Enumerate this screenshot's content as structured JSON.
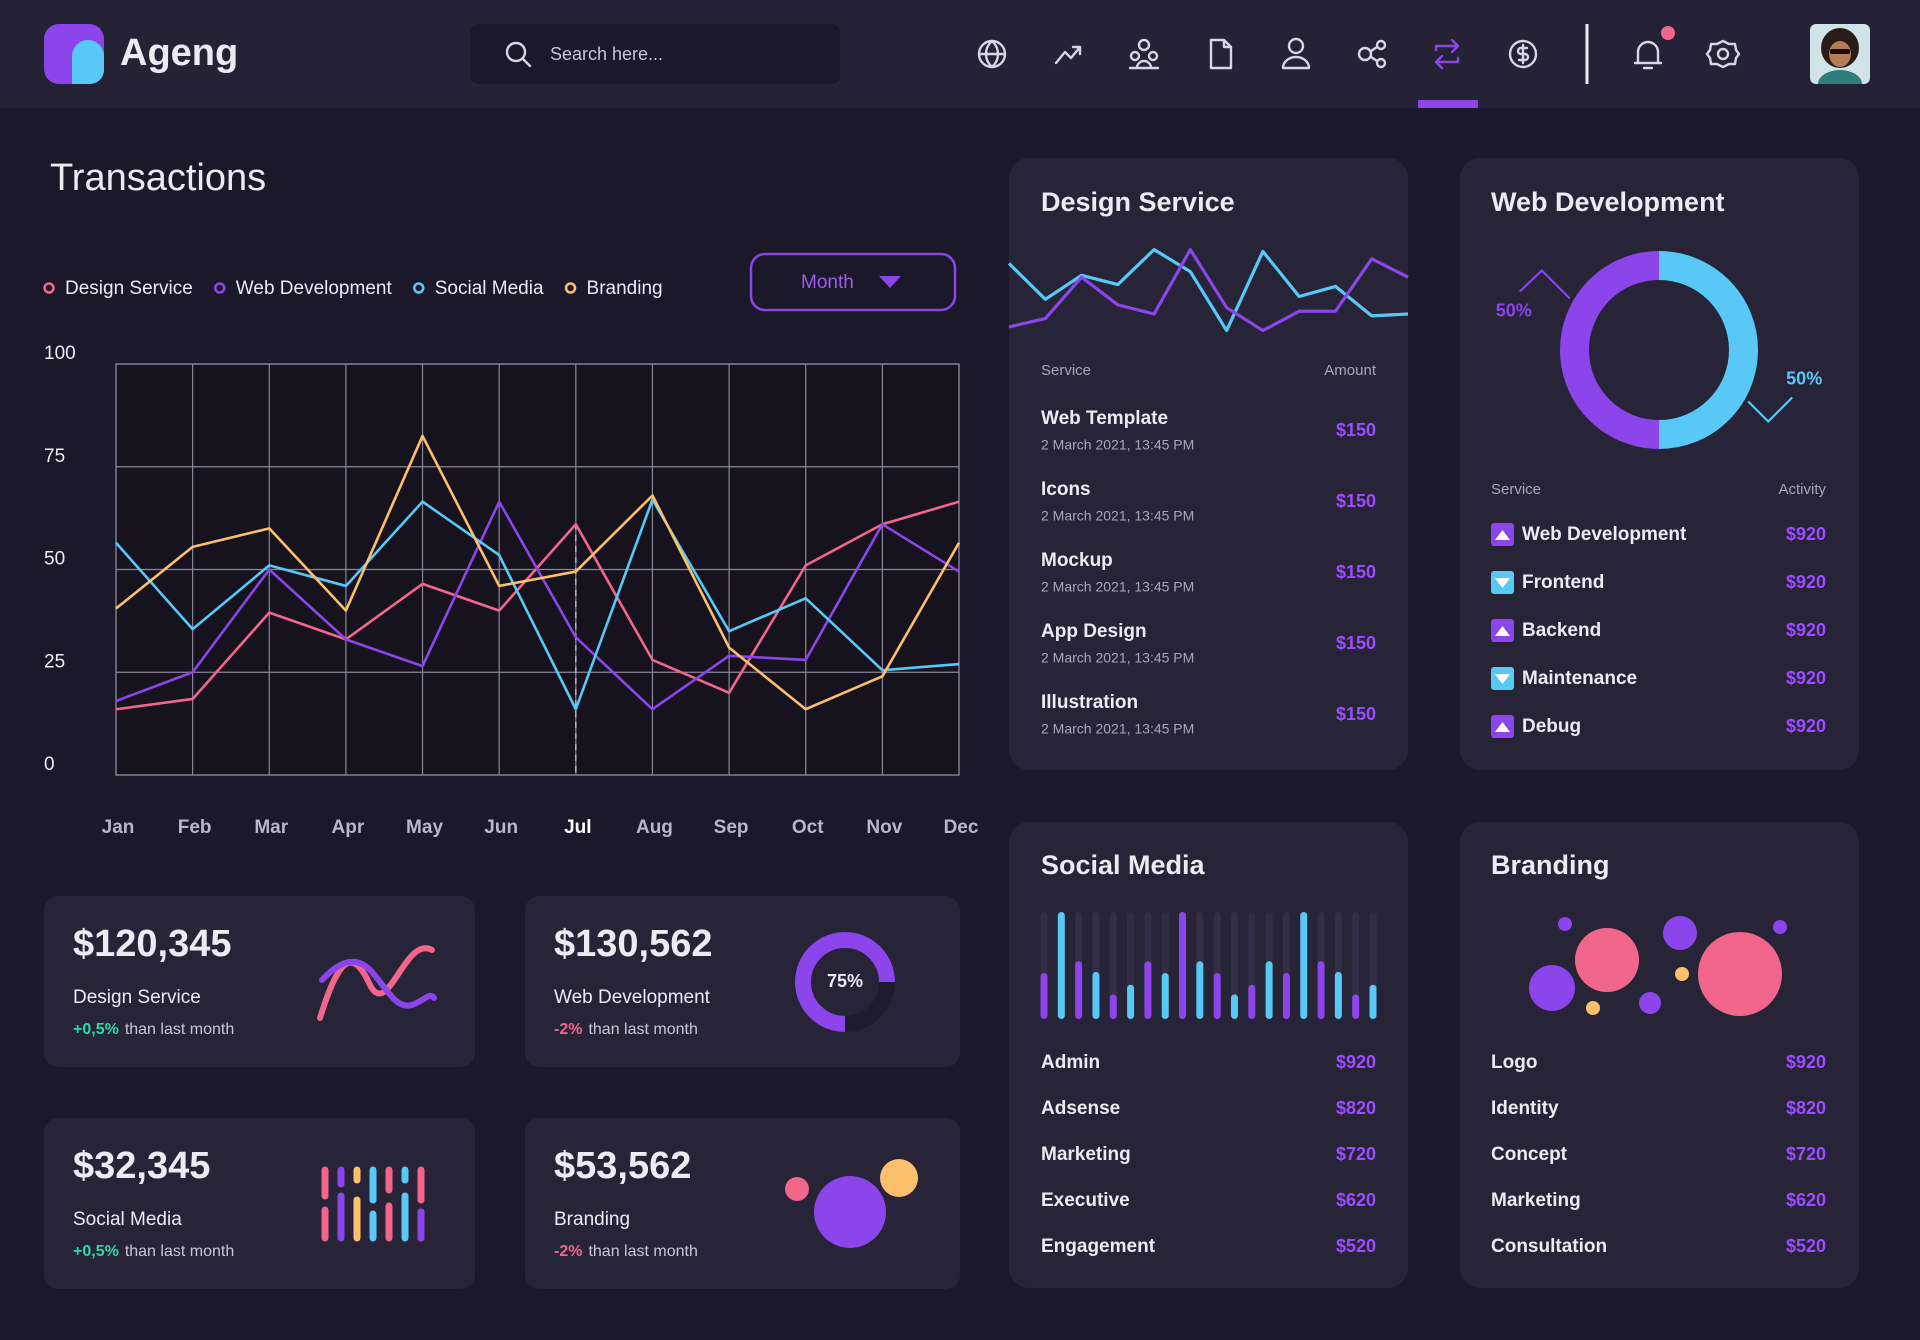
{
  "header": {
    "brand": "Ageng",
    "search_placeholder": "Search here..."
  },
  "chart_data": {
    "type": "line",
    "title": "Transactions",
    "control": "Month",
    "categories": [
      "Jan",
      "Feb",
      "Mar",
      "Apr",
      "May",
      "Jun",
      "Jul",
      "Aug",
      "Sep",
      "Oct",
      "Nov",
      "Dec"
    ],
    "highlight": "Jul",
    "series": [
      {
        "name": "Design Service",
        "color": "#f2668b",
        "values": [
          16,
          18.5,
          39.5,
          33,
          46.5,
          40,
          61,
          28,
          20,
          51,
          61,
          66.5
        ]
      },
      {
        "name": "Web Development",
        "color": "#8b45ea",
        "values": [
          18,
          25,
          50,
          33,
          26.5,
          66.5,
          33.5,
          16,
          29,
          28,
          61,
          49.5
        ]
      },
      {
        "name": "Social Media",
        "color": "#58c9f7",
        "values": [
          56.5,
          35.5,
          51,
          46,
          66.5,
          53.5,
          16,
          67,
          35,
          43,
          25.5,
          27
        ]
      },
      {
        "name": "Branding",
        "color": "#fcbf6b",
        "values": [
          40.5,
          55.5,
          60,
          40,
          82.5,
          46,
          49.5,
          68,
          31,
          16,
          24,
          56.5
        ]
      }
    ],
    "ylim": [
      0,
      100
    ],
    "yticks": [
      0,
      25,
      50,
      75,
      100
    ],
    "grid": true
  },
  "stats": [
    {
      "amount": "$120,345",
      "label": "Design Service",
      "change": "+0,5%",
      "note": "than last month"
    },
    {
      "amount": "$130,562",
      "label": "Web Development",
      "change": "-2%",
      "note": "than last month",
      "ring": {
        "value": 75,
        "label": "75%",
        "color": "#8b45ea"
      }
    },
    {
      "amount": "$32,345",
      "label": "Social Media",
      "change": "+0,5%",
      "note": "than last month"
    },
    {
      "amount": "$53,562",
      "label": "Branding",
      "change": "-2%",
      "note": "than last month"
    }
  ],
  "design_service": {
    "title": "Design Service",
    "columns": [
      "Service",
      "Amount"
    ],
    "sparkline": {
      "ylim": [
        0,
        100
      ],
      "series": [
        {
          "color": "#58c9f7",
          "values": [
            80,
            41,
            67,
            57,
            95,
            71,
            7,
            93,
            44,
            55,
            23,
            25
          ]
        },
        {
          "color": "#8b45ea",
          "values": [
            11,
            20,
            65,
            35,
            25,
            95,
            32,
            7,
            28,
            28,
            85,
            65
          ]
        }
      ]
    },
    "rows": [
      {
        "name": "Web Template",
        "date": "2 March 2021, 13:45 PM",
        "amount": "$150"
      },
      {
        "name": "Icons",
        "date": "2 March 2021, 13:45 PM",
        "amount": "$150"
      },
      {
        "name": "Mockup",
        "date": "2 March 2021, 13:45 PM",
        "amount": "$150"
      },
      {
        "name": "App Design",
        "date": "2 March 2021, 13:45 PM",
        "amount": "$150"
      },
      {
        "name": "Illustration",
        "date": "2 March 2021, 13:45 PM",
        "amount": "$150"
      }
    ]
  },
  "web_development": {
    "title": "Web Development",
    "donut": {
      "values": [
        50,
        50
      ],
      "labels": [
        "50%",
        "50%"
      ],
      "colors": [
        "#8b45ea",
        "#58c9f7"
      ]
    },
    "columns": [
      "Service",
      "Activity"
    ],
    "rows": [
      {
        "name": "Web Development",
        "trend": "up",
        "amount": "$920"
      },
      {
        "name": "Frontend",
        "trend": "down",
        "amount": "$920"
      },
      {
        "name": "Backend",
        "trend": "up",
        "amount": "$920"
      },
      {
        "name": "Maintenance",
        "trend": "down",
        "amount": "$920"
      },
      {
        "name": "Debug",
        "trend": "up",
        "amount": "$920"
      }
    ]
  },
  "social_media": {
    "title": "Social Media",
    "bars": {
      "ylim": [
        0,
        100
      ],
      "colors": [
        "#8b45ea",
        "#58c9f7"
      ],
      "values": [
        43,
        100,
        54,
        44,
        23,
        32,
        54,
        43,
        100,
        54,
        43,
        23,
        32,
        54,
        43,
        100,
        54,
        44,
        23,
        32
      ]
    },
    "rows": [
      {
        "name": "Admin",
        "amount": "$920"
      },
      {
        "name": "Adsense",
        "amount": "$820"
      },
      {
        "name": "Marketing",
        "amount": "$720"
      },
      {
        "name": "Executive",
        "amount": "$620"
      },
      {
        "name": "Engagement",
        "amount": "$520"
      }
    ]
  },
  "branding": {
    "title": "Branding",
    "rows": [
      {
        "name": "Logo",
        "amount": "$920"
      },
      {
        "name": "Identity",
        "amount": "$820"
      },
      {
        "name": "Concept",
        "amount": "$720"
      },
      {
        "name": "Marketing",
        "amount": "$620"
      },
      {
        "name": "Consultation",
        "amount": "$520"
      }
    ]
  }
}
